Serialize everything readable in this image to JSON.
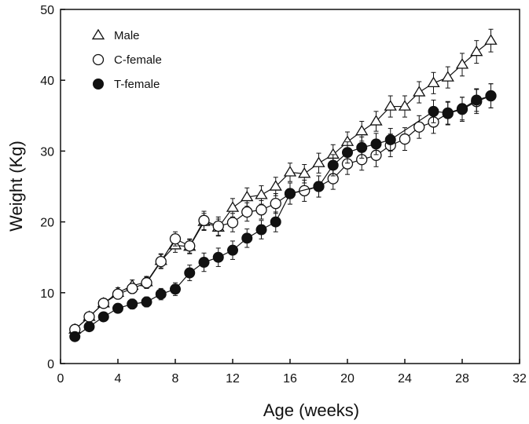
{
  "chart_data": {
    "type": "line",
    "title": "",
    "xlabel": "Age (weeks)",
    "ylabel": "Weight (Kg)",
    "xlim": [
      0,
      32
    ],
    "ylim": [
      0,
      50
    ],
    "xticks": [
      0,
      4,
      8,
      12,
      16,
      20,
      24,
      28,
      32
    ],
    "yticks": [
      0,
      10,
      20,
      30,
      40,
      50
    ],
    "grid": false,
    "legend_position": "top-left",
    "error_bars": true,
    "series": [
      {
        "name": "Male",
        "marker": "open-triangle",
        "x": [
          1,
          2,
          3,
          4,
          5,
          6,
          7,
          8,
          9,
          10,
          11,
          12,
          13,
          14,
          15,
          16,
          17,
          18,
          19,
          20,
          21,
          22,
          23,
          24,
          25,
          26,
          27,
          28,
          29,
          30
        ],
        "y": [
          4.8,
          6.6,
          8.5,
          10.0,
          11.0,
          11.5,
          14.5,
          16.7,
          16.5,
          20.0,
          19.2,
          22.0,
          23.5,
          23.8,
          25.0,
          27.0,
          26.8,
          28.3,
          29.5,
          31.3,
          32.8,
          34.2,
          36.3,
          36.3,
          38.3,
          39.6,
          40.4,
          42.2,
          44.0,
          45.6
        ],
        "err": [
          0.5,
          0.5,
          0.6,
          0.7,
          0.8,
          0.8,
          1.0,
          1.0,
          1.0,
          1.2,
          1.2,
          1.3,
          1.3,
          1.3,
          1.3,
          1.3,
          1.3,
          1.4,
          1.4,
          1.4,
          1.4,
          1.4,
          1.5,
          1.5,
          1.5,
          1.5,
          1.5,
          1.6,
          1.6,
          1.6
        ]
      },
      {
        "name": "C-female",
        "marker": "open-circle",
        "x": [
          1,
          2,
          3,
          4,
          5,
          6,
          7,
          8,
          9,
          10,
          11,
          12,
          13,
          14,
          15,
          16,
          17,
          18,
          19,
          20,
          21,
          22,
          23,
          24,
          25,
          26,
          27,
          28,
          29,
          30
        ],
        "y": [
          4.8,
          6.6,
          8.5,
          9.8,
          10.6,
          11.4,
          14.4,
          17.6,
          16.6,
          20.2,
          19.4,
          19.9,
          21.4,
          21.7,
          22.6,
          24.0,
          24.4,
          25.0,
          26.1,
          28.2,
          28.8,
          29.4,
          30.8,
          31.7,
          33.4,
          34.1,
          35.3,
          35.9,
          37.0,
          37.8
        ],
        "err": [
          0.4,
          0.5,
          0.6,
          0.6,
          0.7,
          0.8,
          1.0,
          1.0,
          1.0,
          1.3,
          1.3,
          1.3,
          1.3,
          1.3,
          1.4,
          1.5,
          1.5,
          1.5,
          1.5,
          1.5,
          1.5,
          1.6,
          1.6,
          1.6,
          1.6,
          1.6,
          1.6,
          1.7,
          1.7,
          1.7
        ]
      },
      {
        "name": "T-female",
        "marker": "filled-circle",
        "x": [
          1,
          2,
          3,
          4,
          5,
          6,
          7,
          8,
          9,
          10,
          11,
          12,
          13,
          14,
          15,
          16,
          17,
          18,
          19,
          20,
          21,
          22,
          23,
          24,
          25,
          26,
          27,
          28,
          29,
          30
        ],
        "y": [
          3.8,
          5.2,
          6.6,
          7.8,
          8.4,
          8.7,
          9.8,
          10.5,
          12.8,
          14.3,
          15.0,
          16.0,
          17.7,
          18.9,
          20.0,
          24.0,
          null,
          25.0,
          28.0,
          29.8,
          30.5,
          31.0,
          31.6,
          null,
          null,
          35.6,
          35.4,
          36.0,
          37.2,
          37.8
        ],
        "err": [
          0.4,
          0.5,
          0.6,
          0.6,
          0.7,
          0.7,
          0.8,
          0.9,
          1.1,
          1.3,
          1.3,
          1.3,
          1.3,
          1.3,
          1.4,
          1.5,
          null,
          1.5,
          1.5,
          1.5,
          1.5,
          1.5,
          1.6,
          null,
          null,
          1.6,
          1.6,
          1.6,
          1.6,
          1.7
        ]
      }
    ]
  },
  "legend": {
    "items": [
      "Male",
      "C-female",
      "T-female"
    ]
  }
}
